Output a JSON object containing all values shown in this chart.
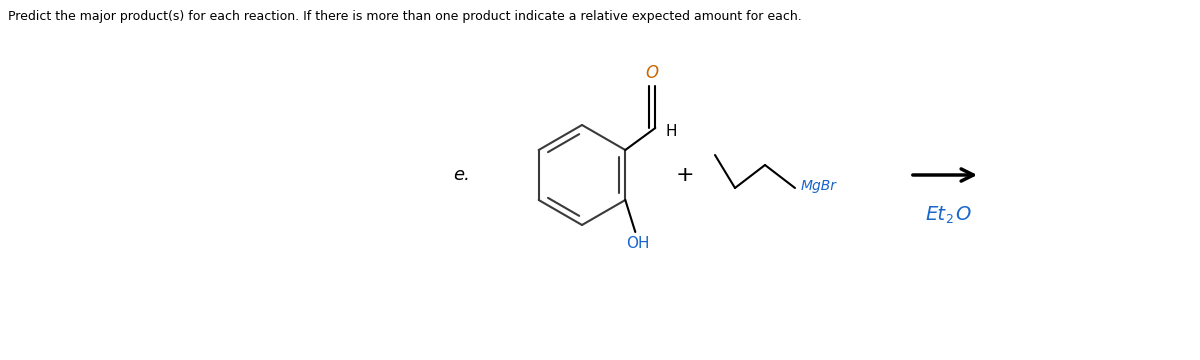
{
  "title": "Predict the major product(s) for each reaction. If there is more than one product indicate a relative expected amount for each.",
  "title_fontsize": 9,
  "title_color": "#000000",
  "background_color": "#ffffff",
  "label_e": "e.",
  "label_e_fontsize": 13,
  "plus_sign": "+",
  "plus_fontsize": 16,
  "mgbr_label": "MgBr",
  "mgbr_color": "#1a66cc",
  "et2o_label": "Et",
  "et2o_sub": "2",
  "et2o_end": "O",
  "et2o_color": "#1a66cc",
  "et2o_fontsize": 14,
  "arrow_color": "#000000",
  "ring_color": "#3a3a3a",
  "bond_color": "#000000",
  "oh_color": "#1a66cc",
  "o_color": "#cc6600",
  "h_color": "#000000"
}
